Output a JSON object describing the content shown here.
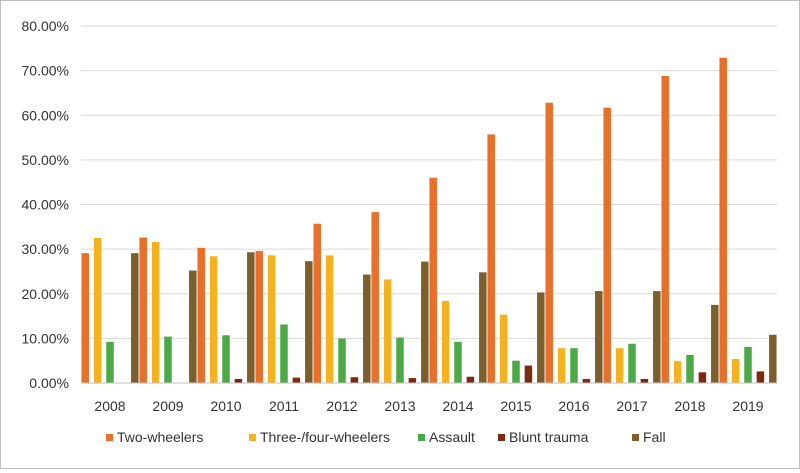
{
  "chart_data": {
    "type": "bar",
    "title": "",
    "xlabel": "",
    "ylabel": "",
    "ylim": [
      0,
      80
    ],
    "yticks": [
      "0.00%",
      "10.00%",
      "20.00%",
      "30.00%",
      "40.00%",
      "50.00%",
      "60.00%",
      "70.00%",
      "80.00%"
    ],
    "grid": true,
    "legend_position": "bottom",
    "categories": [
      "2008",
      "2009",
      "2010",
      "2011",
      "2012",
      "2013",
      "2014",
      "2015",
      "2016",
      "2017",
      "2018",
      "2019"
    ],
    "series": [
      {
        "name": "Two-wheelers",
        "color": "#e8702a",
        "values": [
          29.1,
          32.6,
          30.3,
          29.6,
          35.7,
          38.3,
          46.0,
          55.7,
          62.8,
          61.7,
          68.8,
          72.9
        ]
      },
      {
        "name": "Three-/four-wheelers",
        "color": "#f5b21f",
        "values": [
          32.5,
          31.6,
          28.4,
          28.6,
          28.6,
          23.2,
          18.4,
          15.3,
          7.8,
          7.8,
          4.9,
          5.4
        ]
      },
      {
        "name": "Assault",
        "color": "#4caa46",
        "values": [
          9.2,
          10.4,
          10.7,
          13.1,
          10.0,
          10.2,
          9.2,
          5.0,
          7.8,
          8.8,
          6.3,
          8.1
        ]
      },
      {
        "name": "Blunt trauma",
        "color": "#7a2a12",
        "values": [
          0.0,
          0.0,
          0.9,
          1.2,
          1.3,
          1.1,
          1.4,
          3.9,
          0.9,
          0.9,
          2.4,
          2.6
        ]
      },
      {
        "name": "Fall",
        "color": "#7d5f2c",
        "values": [
          29.1,
          25.2,
          29.3,
          27.3,
          24.3,
          27.2,
          24.8,
          20.3,
          20.6,
          20.6,
          17.5,
          10.8
        ]
      }
    ]
  }
}
